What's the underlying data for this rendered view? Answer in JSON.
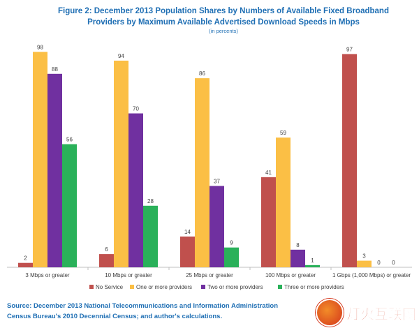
{
  "chart_data": {
    "type": "bar",
    "title_line1": "Figure 2:  December 2013 Population Shares by Numbers of Available Fixed Broadband",
    "title_line2": "Providers by Maximum Available Advertised Download Speeds in Mbps",
    "subtitle": "(in percents)",
    "categories": [
      "3 Mbps or greater",
      "10 Mbps or greater",
      "25 Mbps or greater",
      "100 Mbps or greater",
      "1 Gbps (1,000 Mbps) or greater"
    ],
    "series": [
      {
        "name": "No Service",
        "color": "#c0504d",
        "values": [
          2,
          6,
          14,
          41,
          97
        ]
      },
      {
        "name": "One or more providers",
        "color": "#fbbf45",
        "values": [
          98,
          94,
          86,
          59,
          3
        ]
      },
      {
        "name": "Two or more providers",
        "color": "#7030a0",
        "values": [
          88,
          70,
          37,
          8,
          0
        ]
      },
      {
        "name": "Three or more providers",
        "color": "#2ab15a",
        "values": [
          56,
          28,
          9,
          1,
          0
        ]
      }
    ],
    "ylim": [
      0,
      100
    ],
    "grid": false,
    "legend_position": "bottom"
  },
  "source_line1": "Source:  December 2013 National Telecommunications and Information Administration",
  "source_line2": "Census Bureau's 2010 Decennial Census; and author's calculations.",
  "watermark_text": "灯火互联网"
}
